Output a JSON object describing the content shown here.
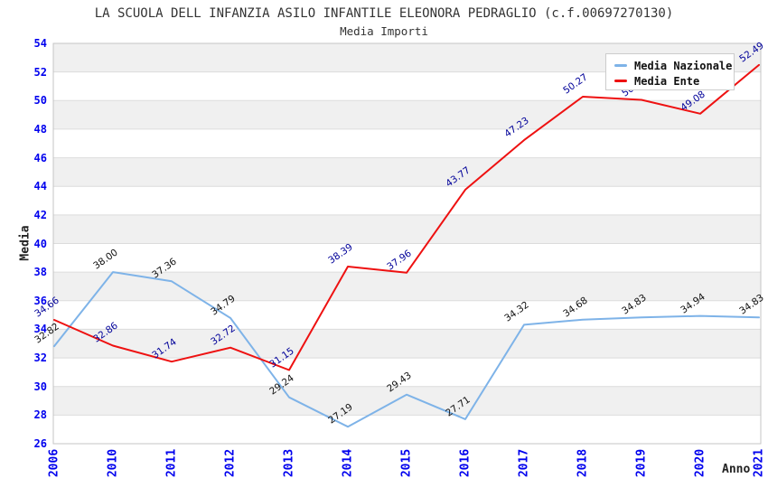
{
  "title": "LA SCUOLA DELL INFANZIA ASILO INFANTILE ELEONORA PEDRAGLIO (c.f.00697270130)",
  "subtitle": "Media Importi",
  "legend": {
    "items": [
      {
        "label": "Media Nazionale",
        "color": "#7eb3e8"
      },
      {
        "label": "Media Ente",
        "color": "#ee1111"
      }
    ]
  },
  "axes": {
    "y_title": "Media",
    "x_title": "Anno",
    "y_ticks": [
      54,
      52,
      50,
      48,
      46,
      44,
      42,
      40,
      38,
      36,
      34,
      32,
      30,
      28,
      26
    ],
    "tick_color": "#0000ee"
  },
  "chart_data": {
    "type": "line",
    "title": "LA SCUOLA DELL INFANZIA ASILO INFANTILE ELEONORA PEDRAGLIO (c.f.00697270130)",
    "subtitle": "Media Importi",
    "xlabel": "Anno",
    "ylabel": "Media",
    "categories": [
      "2006",
      "2010",
      "2011",
      "2012",
      "2013",
      "2014",
      "2015",
      "2016",
      "2017",
      "2018",
      "2019",
      "2020",
      "2021"
    ],
    "series": [
      {
        "name": "Media Nazionale",
        "color": "#7eb3e8",
        "label_color": "#111111",
        "values": [
          32.82,
          38.0,
          37.36,
          34.79,
          29.24,
          27.19,
          29.43,
          27.71,
          34.32,
          34.68,
          34.83,
          34.94,
          34.83
        ],
        "hidden_label_indexes": []
      },
      {
        "name": "Media Ente",
        "color": "#ee1111",
        "label_color": "#000099",
        "values": [
          34.66,
          32.86,
          31.74,
          32.72,
          31.15,
          38.39,
          37.96,
          43.77,
          47.23,
          50.27,
          50.05,
          49.08,
          52.49
        ],
        "hidden_label_indexes": [
          10
        ]
      }
    ],
    "ylim": [
      26,
      54
    ],
    "y_step": 2,
    "grid": "horizontal-bands",
    "legend_position": "top-right",
    "band_color": "#f0f0f0",
    "gridline_color": "#dcdcdc",
    "plot_border_color": "#c4c4c4"
  }
}
